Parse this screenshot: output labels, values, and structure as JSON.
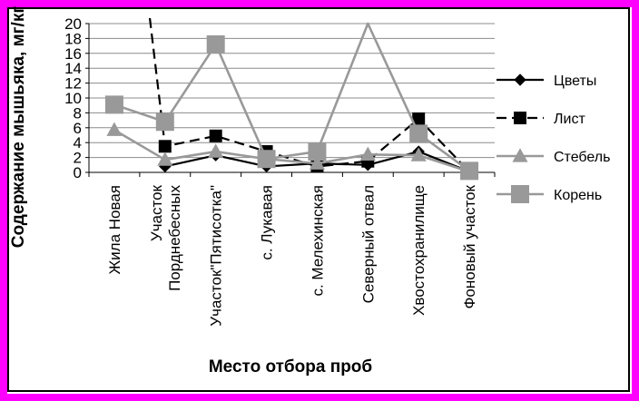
{
  "chart_data": {
    "type": "line",
    "title": "",
    "xlabel": "Место отбора проб",
    "ylabel": "Содержание мышьяка, мг/кг",
    "ylim": [
      0,
      20
    ],
    "yticks": [
      0,
      2,
      4,
      6,
      8,
      10,
      12,
      14,
      16,
      18,
      20
    ],
    "categories": [
      "Жила Новая",
      "Участок Порднебесных",
      "Участок\"Пятисотка\"",
      "с. Лукавая",
      "с. Мелехинская",
      "Северный отвал",
      "Хвостохранилище",
      "Фоновый участок"
    ],
    "category_lines": [
      [
        "Жила Новая"
      ],
      [
        "Участок",
        "Порднебесных"
      ],
      [
        "Участок\"Пятисотка\""
      ],
      [
        "с. Лукавая"
      ],
      [
        "с. Мелехинская"
      ],
      [
        "Северный отвал"
      ],
      [
        "Хвостохранилище"
      ],
      [
        "Фоновый участок"
      ]
    ],
    "grid": true,
    "legend_position": "right",
    "series": [
      {
        "name": "Цветы",
        "values": [
          null,
          0.8,
          2.3,
          0.8,
          1.2,
          1.0,
          2.8,
          0.1
        ],
        "color": "#000000",
        "marker": "diamond",
        "dash": "solid"
      },
      {
        "name": "Лист",
        "values": [
          null,
          3.5,
          4.9,
          2.8,
          0.8,
          1.5,
          7.2,
          0.1
        ],
        "color": "#000000",
        "marker": "square",
        "dash": "dashed",
        "start_overflow": true
      },
      {
        "name": "Стебель",
        "values": [
          5.7,
          1.7,
          2.8,
          1.8,
          1.2,
          2.4,
          2.3,
          0.1
        ],
        "color": "#999999",
        "marker": "triangle",
        "dash": "solid"
      },
      {
        "name": "Корень",
        "values": [
          9.1,
          6.8,
          17.2,
          1.8,
          2.8,
          20.0,
          5.2,
          0.2
        ],
        "color": "#999999",
        "marker": "square",
        "dash": "solid",
        "hidden_markers": [
          5
        ]
      }
    ]
  }
}
